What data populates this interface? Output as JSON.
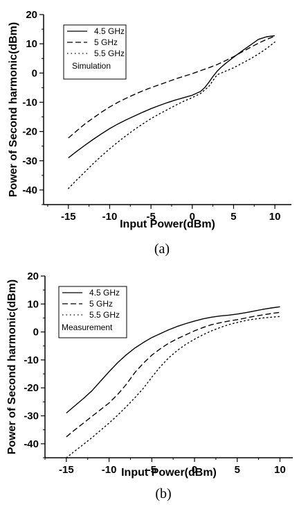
{
  "chart_data": [
    {
      "type": "line",
      "caption": "(a)",
      "xlabel": "Input Power(dBm)",
      "ylabel": "Power of Second harmonic(dBm)",
      "xlim": [
        -18,
        12
      ],
      "ylim": [
        -45,
        20
      ],
      "xticks": [
        -15,
        -10,
        -5,
        0,
        5,
        10
      ],
      "yticks": [
        -40,
        -30,
        -20,
        -10,
        0,
        10,
        20
      ],
      "legend_position": "top-left",
      "annotation": "Simulation",
      "series": [
        {
          "name": "4.5 GHz",
          "style": "solid",
          "x": [
            -15,
            -14,
            -13,
            -12,
            -11,
            -10,
            -9,
            -8,
            -7,
            -6,
            -5,
            -4,
            -3,
            -2,
            -1,
            0,
            1,
            1.5,
            2,
            2.5,
            3,
            3.5,
            4,
            5,
            6,
            7,
            8,
            9,
            10
          ],
          "y": [
            -29,
            -26.8,
            -24.7,
            -22.7,
            -20.8,
            -19,
            -17.4,
            -16,
            -14.7,
            -13.4,
            -12.2,
            -11.1,
            -10.1,
            -9.2,
            -8.4,
            -7.6,
            -6.3,
            -5,
            -3.2,
            -1.2,
            0.6,
            2,
            3.2,
            5.4,
            7.5,
            9.5,
            11.5,
            12.4,
            12.8
          ]
        },
        {
          "name": "5 GHz",
          "style": "dashed",
          "x": [
            -15,
            -14,
            -13,
            -12,
            -11,
            -10,
            -9,
            -8,
            -7,
            -6,
            -5,
            -4,
            -3,
            -2,
            -1,
            0,
            1,
            2,
            3,
            4,
            5,
            6,
            7,
            8,
            9,
            10
          ],
          "y": [
            -22.2,
            -19.8,
            -17.4,
            -15.4,
            -13.4,
            -11.6,
            -10,
            -8.6,
            -7.3,
            -6.1,
            -5,
            -4,
            -3,
            -2,
            -1.1,
            -0.2,
            0.8,
            1.8,
            2.9,
            4.2,
            5.6,
            7.2,
            8.7,
            10.2,
            11.5,
            12.6
          ]
        },
        {
          "name": "5.5 GHz",
          "style": "dotted",
          "x": [
            -15,
            -14,
            -13,
            -12,
            -11,
            -10,
            -9,
            -8,
            -7,
            -6,
            -5,
            -4,
            -3,
            -2,
            -1,
            0,
            1,
            2,
            2.5,
            3,
            4,
            5,
            6,
            7,
            8,
            9,
            10
          ],
          "y": [
            -39.5,
            -36.6,
            -33.8,
            -31,
            -28.4,
            -25.9,
            -23.6,
            -21.4,
            -19.3,
            -17.4,
            -15.6,
            -14,
            -12.5,
            -11,
            -9.6,
            -8.4,
            -7,
            -4.6,
            -2.6,
            -0.6,
            0.6,
            1.8,
            3.3,
            4.8,
            6.5,
            8.4,
            10.6
          ]
        }
      ]
    },
    {
      "type": "line",
      "caption": "(b)",
      "xlabel": "Input Power(dBm)",
      "ylabel": "Power of Second harmonic(dBm)",
      "xlim": [
        -17.5,
        11.5
      ],
      "ylim": [
        -45,
        20
      ],
      "xticks": [
        -15,
        -10,
        -5,
        0,
        5,
        10
      ],
      "yticks": [
        -40,
        -30,
        -20,
        -10,
        0,
        10,
        20
      ],
      "legend_position": "top-left",
      "annotation": "Measurement",
      "series": [
        {
          "name": "4.5 GHz",
          "style": "solid",
          "x": [
            -15,
            -14,
            -13,
            -12,
            -11,
            -10,
            -9,
            -8,
            -7,
            -6,
            -5,
            -4,
            -3,
            -2,
            -1,
            0,
            1,
            2,
            3,
            4,
            5,
            6,
            7,
            8,
            9,
            10
          ],
          "y": [
            -29,
            -26.4,
            -23.8,
            -21,
            -17.6,
            -14.2,
            -11,
            -8.2,
            -5.8,
            -3.8,
            -2,
            -0.6,
            0.8,
            2,
            3,
            3.9,
            4.7,
            5.3,
            5.7,
            6,
            6.4,
            6.9,
            7.5,
            8.1,
            8.6,
            9
          ]
        },
        {
          "name": "5 GHz",
          "style": "dashed",
          "x": [
            -15,
            -14,
            -13,
            -12,
            -11,
            -10,
            -9,
            -8,
            -7,
            -6,
            -5,
            -4,
            -3,
            -2,
            -1,
            0,
            1,
            2,
            3,
            4,
            5,
            6,
            7,
            8,
            9,
            10
          ],
          "y": [
            -37.5,
            -35,
            -32.6,
            -30.2,
            -27.8,
            -25.4,
            -22.4,
            -18.8,
            -14.6,
            -11.2,
            -8.3,
            -6,
            -4,
            -2.4,
            -1,
            0.4,
            1.6,
            2.6,
            3.3,
            3.9,
            4.4,
            5,
            5.6,
            6.1,
            6.6,
            7
          ]
        },
        {
          "name": "5.5 GHz",
          "style": "dotted",
          "x": [
            -15,
            -14,
            -13,
            -12,
            -11,
            -10,
            -9,
            -8,
            -7,
            -6,
            -5,
            -4,
            -3,
            -2,
            -1,
            0,
            1,
            2,
            3,
            4,
            5,
            6,
            7,
            8,
            9,
            10
          ],
          "y": [
            -45,
            -42.6,
            -40.2,
            -37.8,
            -35.2,
            -32.6,
            -29.8,
            -26.8,
            -23.6,
            -20.2,
            -16.2,
            -12.4,
            -9.2,
            -6.6,
            -4.4,
            -2.6,
            -1,
            0.4,
            1.6,
            2.6,
            3.4,
            4.1,
            4.6,
            5,
            5.3,
            5.5
          ]
        }
      ]
    }
  ]
}
